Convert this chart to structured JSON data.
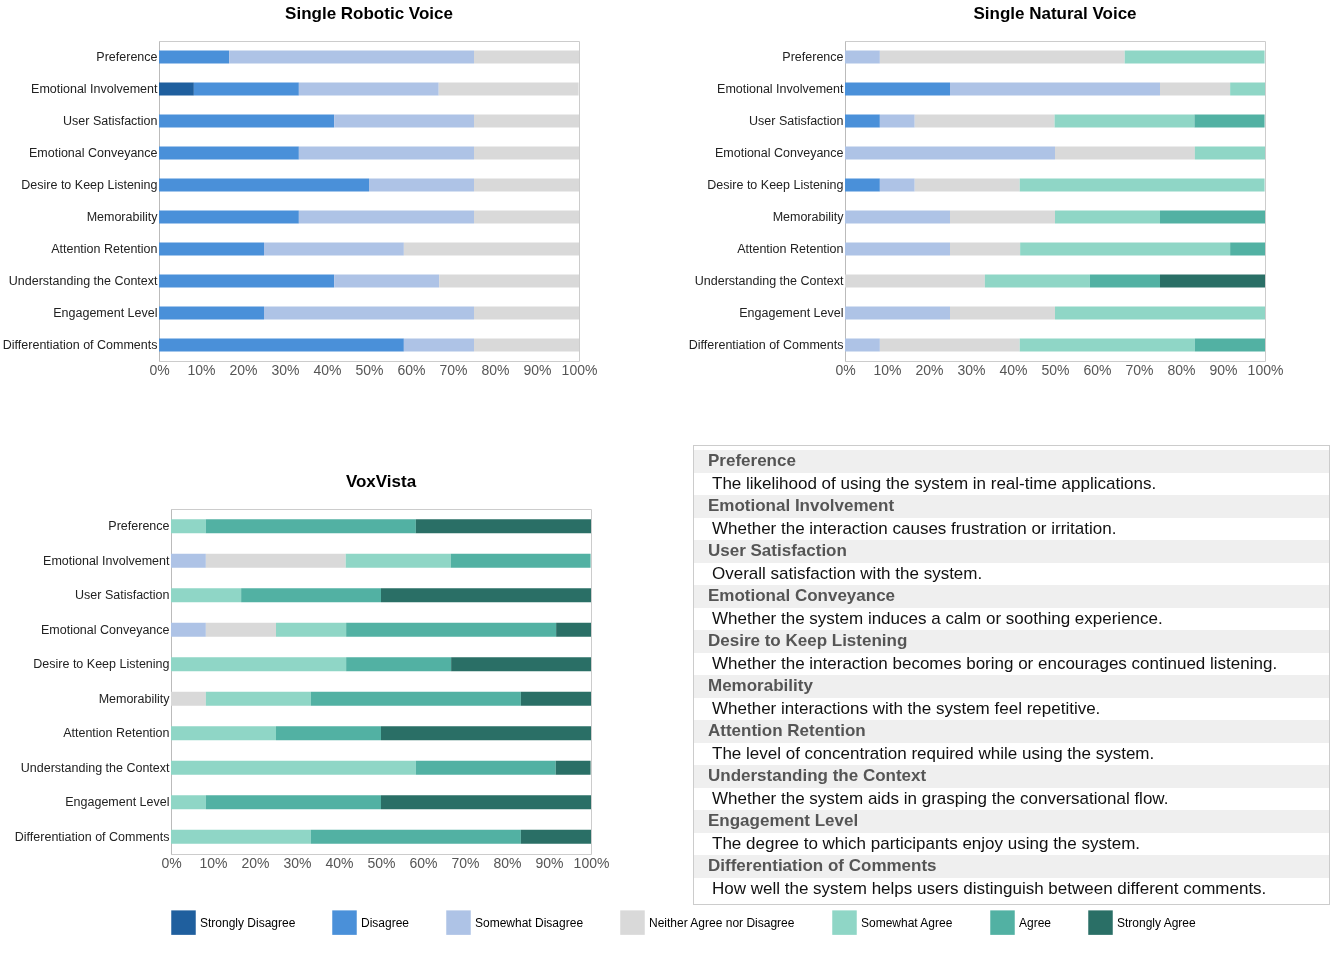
{
  "chart_data": [
    {
      "type": "bar",
      "orientation": "horizontal",
      "stacked": true,
      "title": "Single Robotic Voice",
      "categories": [
        "Preference",
        "Emotional Involvement",
        "User Satisfaction",
        "Emotional Conveyance",
        "Desire to Keep Listening",
        "Memorability",
        "Attention Retention",
        "Understanding the Context",
        "Engagement Level",
        "Differentiation of Comments"
      ],
      "series": [
        {
          "color": "#1f5f9e",
          "values": [
            null,
            8.3,
            null,
            null,
            null,
            null,
            null,
            null,
            null,
            null
          ]
        },
        {
          "color": "#4a90d9",
          "values": [
            16.7,
            25,
            41.7,
            33.3,
            50,
            33.3,
            25,
            41.7,
            25,
            58.3
          ]
        },
        {
          "color": "#aec3e6",
          "values": [
            58.3,
            33.3,
            33.3,
            41.7,
            25,
            41.7,
            33.3,
            25,
            50,
            16.7
          ]
        },
        {
          "color": "#d9d9d9",
          "values": [
            25,
            33.3,
            25,
            25,
            25,
            25,
            41.7,
            33.3,
            25,
            25
          ]
        }
      ],
      "xlim": [
        0,
        100
      ],
      "xticks": [
        {
          "value": 0,
          "label": "0%"
        },
        {
          "value": 10,
          "label": "10%"
        },
        {
          "value": 20,
          "label": "20%"
        },
        {
          "value": 30,
          "label": "30%"
        },
        {
          "value": 40,
          "label": "40%"
        },
        {
          "value": 50,
          "label": "50%"
        },
        {
          "value": 60,
          "label": "60%"
        },
        {
          "value": 70,
          "label": "70%"
        },
        {
          "value": 80,
          "label": "80%"
        },
        {
          "value": 90,
          "label": "90%"
        },
        {
          "value": 100,
          "label": "100%"
        }
      ]
    },
    {
      "type": "bar",
      "orientation": "horizontal",
      "stacked": true,
      "title": "Single Natural Voice",
      "categories": [
        "Preference",
        "Emotional Involvement",
        "User Satisfaction",
        "Emotional Conveyance",
        "Desire to Keep Listening",
        "Memorability",
        "Attention Retention",
        "Understanding the Context",
        "Engagement Level",
        "Differentiation of Comments"
      ],
      "series": [
        {
          "color": "#4a90d9",
          "values": [
            null,
            25,
            8.3,
            null,
            8.3,
            null,
            null,
            null,
            null,
            null
          ]
        },
        {
          "color": "#aec3e6",
          "values": [
            8.3,
            50,
            8.3,
            50,
            8.3,
            25,
            25,
            null,
            25,
            8.3
          ]
        },
        {
          "color": "#d9d9d9",
          "values": [
            58.3,
            16.7,
            33.3,
            33.3,
            25,
            25,
            16.7,
            33.3,
            25,
            33.3
          ]
        },
        {
          "color": "#8fd6c6",
          "values": [
            33.3,
            8.3,
            33.3,
            16.7,
            58.3,
            25,
            50,
            25,
            50,
            41.7
          ]
        },
        {
          "color": "#52b1a3",
          "values": [
            null,
            null,
            16.7,
            null,
            null,
            25,
            8.3,
            16.7,
            null,
            16.7
          ]
        },
        {
          "color": "#2a6f66",
          "values": [
            null,
            null,
            null,
            null,
            null,
            null,
            null,
            25,
            null,
            null
          ]
        }
      ],
      "xlim": [
        0,
        100
      ],
      "xticks": [
        {
          "value": 0,
          "label": "0%"
        },
        {
          "value": 10,
          "label": "10%"
        },
        {
          "value": 20,
          "label": "20%"
        },
        {
          "value": 30,
          "label": "30%"
        },
        {
          "value": 40,
          "label": "40%"
        },
        {
          "value": 50,
          "label": "50%"
        },
        {
          "value": 60,
          "label": "60%"
        },
        {
          "value": 70,
          "label": "70%"
        },
        {
          "value": 80,
          "label": "80%"
        },
        {
          "value": 90,
          "label": "90%"
        },
        {
          "value": 100,
          "label": "100%"
        }
      ]
    },
    {
      "type": "bar",
      "orientation": "horizontal",
      "stacked": true,
      "title": "VoxVista",
      "legend": "bottom",
      "categories": [
        "Preference",
        "Emotional Involvement",
        "User Satisfaction",
        "Emotional Conveyance",
        "Desire to Keep Listening",
        "Memorability",
        "Attention Retention",
        "Understanding the Context",
        "Engagement Level",
        "Differentiation of Comments"
      ],
      "series": [
        {
          "name": "Strongly Disagree",
          "color": "#1f5f9e",
          "values": [
            null,
            null,
            null,
            null,
            null,
            null,
            null,
            null,
            null,
            null
          ]
        },
        {
          "name": "Disagree",
          "color": "#4a90d9",
          "values": [
            null,
            null,
            null,
            null,
            null,
            null,
            null,
            null,
            null,
            null
          ]
        },
        {
          "name": "Somewhat Disagree",
          "color": "#aec3e6",
          "values": [
            null,
            8.3,
            null,
            8.3,
            null,
            null,
            null,
            null,
            null,
            null
          ]
        },
        {
          "name": "Neither Agree nor Disagree",
          "color": "#d9d9d9",
          "values": [
            null,
            33.3,
            null,
            16.7,
            null,
            8.3,
            null,
            null,
            null,
            null
          ]
        },
        {
          "name": "Somewhat Agree",
          "color": "#8fd6c6",
          "values": [
            8.3,
            25,
            16.7,
            16.7,
            41.7,
            25,
            25,
            58.3,
            8.3,
            33.3
          ]
        },
        {
          "name": "Agree",
          "color": "#52b1a3",
          "values": [
            50,
            33.3,
            33.3,
            50,
            25,
            50,
            25,
            33.3,
            41.7,
            50
          ]
        },
        {
          "name": "Strongly Agree",
          "color": "#2a6f66",
          "values": [
            41.7,
            null,
            50,
            8.3,
            33.3,
            16.7,
            50,
            8.3,
            50,
            16.7
          ]
        }
      ],
      "xlim": [
        0,
        100
      ],
      "xticks": [
        {
          "value": 0,
          "label": "0%"
        },
        {
          "value": 10,
          "label": "10%"
        },
        {
          "value": 20,
          "label": "20%"
        },
        {
          "value": 30,
          "label": "30%"
        },
        {
          "value": 40,
          "label": "40%"
        },
        {
          "value": 50,
          "label": "50%"
        },
        {
          "value": 60,
          "label": "60%"
        },
        {
          "value": 70,
          "label": "70%"
        },
        {
          "value": 80,
          "label": "80%"
        },
        {
          "value": 90,
          "label": "90%"
        },
        {
          "value": 100,
          "label": "100%"
        }
      ]
    },
    {
      "type": "other",
      "annotations": [
        "Preference",
        "The likelihood of using the system in real-time applications.",
        "Emotional Involvement",
        "Whether the interaction causes frustration or irritation.",
        "User Satisfaction",
        "Overall satisfaction with the system.",
        "Emotional Conveyance",
        "Whether the system induces a calm or soothing experience.",
        "Desire to Keep Listening",
        "Whether the interaction becomes boring or encourages continued listening.",
        "Memorability",
        "Whether interactions with the system feel repetitive.",
        "Attention Retention",
        "The level of concentration required while using the system.",
        "Understanding the Context",
        "Whether the system aids in grasping the conversational flow.",
        "Engagement Level",
        "The degree to which participants enjoy using the system.",
        "Differentiation of Comments",
        "How well the system helps users distinguish between different comments."
      ]
    }
  ]
}
